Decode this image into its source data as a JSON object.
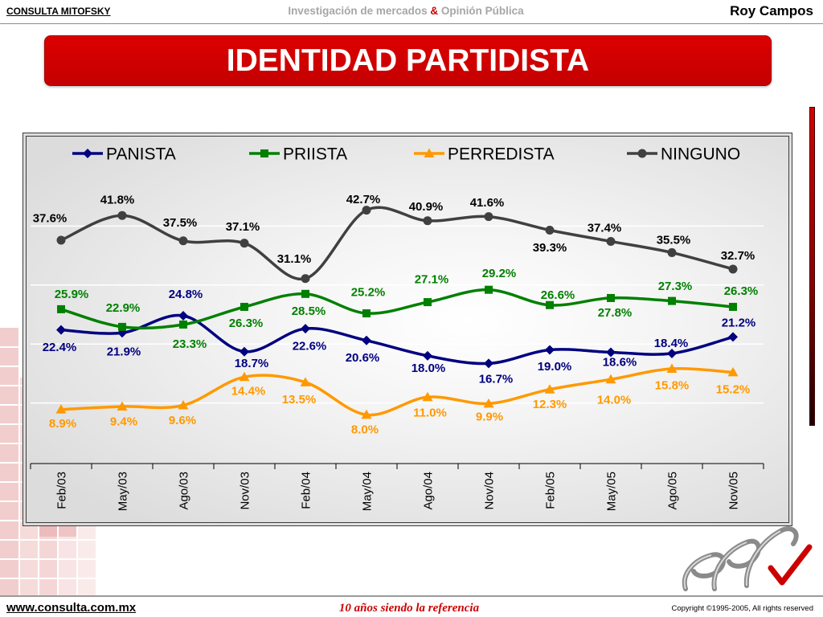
{
  "header": {
    "brand": "CONSULTA MITOFSKY",
    "tagline_part1": "Investigación de mercados",
    "tagline_amp": "&",
    "tagline_part2": "Opinión Pública",
    "author": "Roy Campos"
  },
  "chart_data": {
    "type": "line",
    "title": "IDENTIDAD PARTIDISTA",
    "xlabel": "",
    "ylabel": "",
    "ylim": [
      0,
      50
    ],
    "grid": true,
    "smoothed": true,
    "legend": "top",
    "value_suffix": "%",
    "categories": [
      "Feb/03",
      "May/03",
      "Ago/03",
      "Nov/03",
      "Feb/04",
      "May/04",
      "Ago/04",
      "Nov/04",
      "Feb/05",
      "May/05",
      "Ago/05",
      "Nov/05"
    ],
    "series": [
      {
        "name": "PANISTA",
        "color": "#000080",
        "label_color": "#000080",
        "marker": "diamond",
        "values": [
          22.4,
          21.9,
          24.8,
          18.7,
          22.6,
          20.6,
          18.0,
          16.7,
          19.0,
          18.6,
          18.4,
          21.2
        ]
      },
      {
        "name": "PRIISTA",
        "color": "#008000",
        "label_color": "#008000",
        "marker": "square",
        "values": [
          25.9,
          22.9,
          23.3,
          26.3,
          28.5,
          25.2,
          27.1,
          29.2,
          26.6,
          27.8,
          27.3,
          26.3
        ]
      },
      {
        "name": "PERREDISTA",
        "color": "#ff9900",
        "label_color": "#ff9900",
        "marker": "triangle",
        "values": [
          8.9,
          9.4,
          9.6,
          14.4,
          13.5,
          8.0,
          11.0,
          9.9,
          12.3,
          14.0,
          15.8,
          15.2
        ]
      },
      {
        "name": "NINGUNO",
        "color": "#404040",
        "label_color": "#000000",
        "marker": "circle",
        "values": [
          37.6,
          41.8,
          37.5,
          37.1,
          31.1,
          42.7,
          40.9,
          41.6,
          39.3,
          37.4,
          35.5,
          32.7
        ]
      }
    ]
  },
  "footer": {
    "website": "www.consulta.com.mx",
    "slogan": "10 años siendo la referencia",
    "copyright": "Copyright ©1995-2005, All rights reserved"
  },
  "colors": {
    "brand_red": "#cc0000",
    "tagline_gray": "#a6a6a6"
  }
}
